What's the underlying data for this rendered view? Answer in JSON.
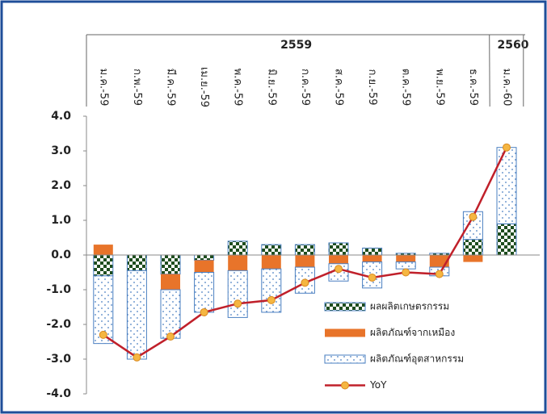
{
  "chart_data": {
    "type": "stacked-bar-line",
    "categories": [
      "ม.ค.-59",
      "ก.พ.-59",
      "มี.ค.-59",
      "เม.ย.-59",
      "พ.ค.-59",
      "มิ.ย.-59",
      "ก.ค.-59",
      "ส.ค.-59",
      "ก.ย.-59",
      "ต.ค.-59",
      "พ.ย.-59",
      "ธ.ค.-59",
      "ม.ค.-60"
    ],
    "groups": [
      {
        "label": "2559"
      },
      {
        "label": "2560"
      }
    ],
    "series": [
      {
        "name": "ผลผลิตเกษตรกรรม",
        "color": "#1e4d1e",
        "pattern": "checker",
        "values": [
          -0.6,
          -0.45,
          -0.55,
          -0.15,
          0.4,
          0.3,
          0.3,
          0.35,
          0.2,
          0.05,
          0.05,
          0.45,
          0.9
        ]
      },
      {
        "name": "ผลิตภัณฑ์จากเหมือง",
        "color": "#e8742a",
        "pattern": "solid",
        "values": [
          0.3,
          0,
          -0.45,
          -0.35,
          -0.45,
          -0.4,
          -0.35,
          -0.25,
          -0.2,
          -0.2,
          -0.35,
          -0.2,
          0
        ]
      },
      {
        "name": "ผลิตภัณฑ์อุตสาหกรรม",
        "color": "#4a7fc1",
        "pattern": "dots",
        "values": [
          -1.95,
          -2.55,
          -1.4,
          -1.15,
          -1.35,
          -1.25,
          -0.75,
          -0.5,
          -0.75,
          -0.2,
          -0.25,
          0.8,
          2.2
        ]
      },
      {
        "name": "YoY",
        "color": "#c0202a",
        "type": "line",
        "marker_color": "#f5b642",
        "values": [
          -2.3,
          -2.95,
          -2.35,
          -1.65,
          -1.4,
          -1.3,
          -0.8,
          -0.4,
          -0.65,
          -0.5,
          -0.55,
          1.1,
          3.1
        ]
      }
    ],
    "ylim": [
      -4,
      4
    ],
    "yticks": [
      {
        "value": -4,
        "label": "-4.0"
      },
      {
        "value": -3,
        "label": "-3.0"
      },
      {
        "value": -2,
        "label": "-2.0"
      },
      {
        "value": -1,
        "label": "-1.0"
      },
      {
        "value": 0,
        "label": "0.0"
      },
      {
        "value": 1,
        "label": "1.0"
      },
      {
        "value": 2,
        "label": "2.0"
      },
      {
        "value": 3,
        "label": "3.0"
      },
      {
        "value": 4,
        "label": "4.0"
      }
    ],
    "legend": "lower right"
  }
}
